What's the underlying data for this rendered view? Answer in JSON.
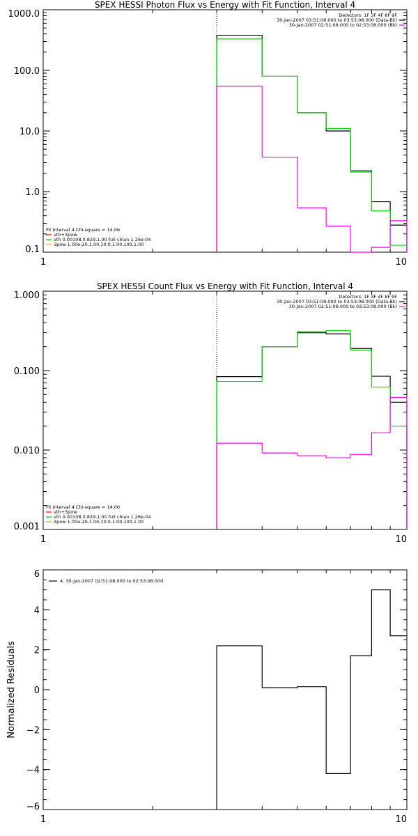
{
  "chart_data": [
    {
      "type": "line",
      "title": "SPEX HESSI Photon Flux vs Energy with Fit Function, Interval 4",
      "xscale": "log",
      "yscale": "log",
      "xlim": [
        1,
        10
      ],
      "ylim": [
        0.1,
        1000
      ],
      "x_tick_labels": [
        "1",
        "10"
      ],
      "y_tick_labels": [
        "0.1",
        "1.0",
        "10.0",
        "100.0",
        "1000.0"
      ],
      "y_ticks": [
        0.1,
        1,
        10,
        100,
        1000
      ],
      "marker_x": 3,
      "top_legend": [
        {
          "text": "Detectors: 1F 3F 4F 8F 9F",
          "color": ""
        },
        {
          "text": "30-Jan-2007 03:51:08.000 to 03:53:08.000 (Data-Bk)",
          "color": "#000000"
        },
        {
          "text": "30-Jan-2007 02:51:08.000 to 02:53:08.000 (Bk)",
          "color": "#ff00ff"
        }
      ],
      "fit_legend": [
        {
          "text": "Fit Interval 4   Chi-square = 14.06",
          "color": ""
        },
        {
          "text": "vth+3pow",
          "color": "#ff0000"
        },
        {
          "text": "vth 0.00108,0.829,1.00  full chian 1.26e-04",
          "color": "#00cc00"
        },
        {
          "text": "3pow 1.00e-20,1.00,10.0,1.00,100,1.00",
          "color": "#ccaa00"
        }
      ],
      "edges": [
        3,
        4,
        5,
        6,
        7,
        8,
        9,
        10
      ],
      "series": [
        {
          "color": "#000000",
          "values": [
            380,
            80,
            20,
            10,
            2.2,
            0.68,
            0.28
          ]
        },
        {
          "color": "#00dd00",
          "values": [
            330,
            80,
            20,
            11,
            2.1,
            0.48,
            0.13
          ]
        },
        {
          "color": "#ff00ff",
          "values": [
            55,
            3.7,
            0.54,
            0.27,
            0.1,
            0.12,
            0.33
          ]
        }
      ]
    },
    {
      "type": "line",
      "title": "SPEX HESSI Count Flux vs Energy with Fit Function, Interval 4",
      "xscale": "log",
      "yscale": "log",
      "xlim": [
        1,
        10
      ],
      "ylim": [
        0.001,
        1
      ],
      "x_tick_labels": [
        "1",
        "10"
      ],
      "y_tick_labels": [
        "0.001",
        "0.010",
        "0.100",
        "1.000"
      ],
      "y_ticks": [
        0.001,
        0.01,
        0.1,
        1
      ],
      "marker_x": 3,
      "top_legend": [
        {
          "text": "Detectors: 1F 3F 4F 8F 9F",
          "color": ""
        },
        {
          "text": "30-Jan-2007 03:51:08.000 to 03:53:08.000 (Data-Bk)",
          "color": "#000000"
        },
        {
          "text": "30-Jan-2007 02:51:08.000 to 02:53:08.000 (Bk)",
          "color": "#ff00ff"
        }
      ],
      "fit_legend": [
        {
          "text": "Fit Interval 4   Chi-square = 14.06",
          "color": ""
        },
        {
          "text": "vth+3pow",
          "color": "#ff0000"
        },
        {
          "text": "vth 0.00108,0.829,1.00  full chian 1.26e-04",
          "color": "#00cc00"
        },
        {
          "text": "3pow 1.00e-20,1.00,10.0,1.00,100,1.00",
          "color": "#ccaa00"
        }
      ],
      "edges": [
        3,
        4,
        5,
        6,
        7,
        8,
        9,
        10
      ],
      "series": [
        {
          "color": "#000000",
          "values": [
            0.084,
            0.2,
            0.3,
            0.29,
            0.19,
            0.085,
            0.04
          ]
        },
        {
          "color": "#00dd00",
          "values": [
            0.073,
            0.2,
            0.31,
            0.32,
            0.18,
            0.062,
            0.02
          ]
        },
        {
          "color": "#ff00ff",
          "values": [
            0.0122,
            0.0092,
            0.0085,
            0.008,
            0.0088,
            0.0165,
            0.046
          ]
        }
      ]
    },
    {
      "type": "line",
      "title": "",
      "xscale": "log",
      "yscale": "linear",
      "xlim": [
        1,
        10
      ],
      "ylim": [
        -6,
        6
      ],
      "ylabel": "Normalized Residuals",
      "x_tick_labels": [
        "1",
        "10"
      ],
      "y_tick_labels": [
        "−6",
        "−4",
        "−2",
        "0",
        "2",
        "4",
        "6"
      ],
      "y_ticks": [
        -6,
        -4,
        -2,
        0,
        2,
        4,
        6
      ],
      "marker_x": 3,
      "top_legend": [],
      "fit_legend": [],
      "resid_legend": "4. 30-Jan-2007 02:51:08.000 to 02:53:08.000",
      "edges": [
        3,
        4,
        5,
        6,
        7,
        8,
        9,
        10
      ],
      "series": [
        {
          "color": "#000000",
          "values": [
            2.2,
            0.1,
            0.15,
            -4.2,
            1.7,
            5.0,
            2.7
          ]
        }
      ]
    }
  ]
}
